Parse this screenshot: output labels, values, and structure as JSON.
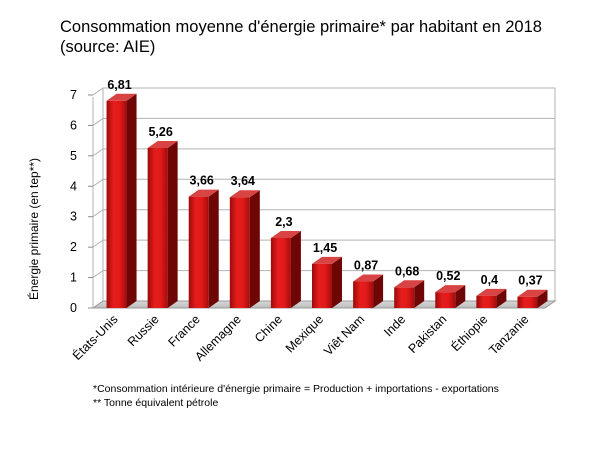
{
  "chart_data": {
    "type": "bar",
    "title_lines": [
      "Consommation moyenne d'énergie primaire* par habitant en 2018",
      "(source: AIE)"
    ],
    "ylabel": "Énergie primaire (en tep**)",
    "xlabel": "",
    "ylim": [
      0,
      7
    ],
    "yticks": [
      0,
      1,
      2,
      3,
      4,
      5,
      6,
      7
    ],
    "grid": true,
    "legend": "none",
    "bar_color": "#cc1111",
    "categories": [
      "États-Unis",
      "Russie",
      "France",
      "Allemagne",
      "Chine",
      "Mexique",
      "Viêt Nam",
      "Inde",
      "Pakistan",
      "Éthiopie",
      "Tanzanie"
    ],
    "values": [
      6.81,
      5.26,
      3.66,
      3.64,
      2.3,
      1.45,
      0.87,
      0.68,
      0.52,
      0.4,
      0.37
    ],
    "value_labels": [
      "6,81",
      "5,26",
      "3,66",
      "3,64",
      "2,3",
      "1,45",
      "0,87",
      "0,68",
      "0,52",
      "0,4",
      "0,37"
    ],
    "footnotes": [
      "*Consommation intérieure d'énergie primaire = Production + importations - exportations",
      "** Tonne équivalent pétrole"
    ]
  }
}
